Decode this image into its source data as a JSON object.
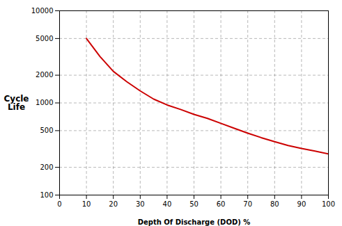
{
  "chart_data": {
    "type": "line",
    "xlabel": "Depth Of Discharge (DOD) %",
    "ylabel": "Cycle\nLife",
    "x": [
      10,
      15,
      20,
      25,
      30,
      35,
      40,
      45,
      50,
      55,
      60,
      65,
      70,
      75,
      80,
      85,
      90,
      95,
      100
    ],
    "values": [
      5000,
      3200,
      2200,
      1700,
      1350,
      1100,
      950,
      850,
      750,
      680,
      600,
      530,
      470,
      420,
      380,
      345,
      320,
      300,
      280
    ],
    "color": "#cc0000",
    "xlim": [
      0,
      100
    ],
    "ylim": [
      100,
      10000
    ],
    "xticks": [
      0,
      10,
      20,
      30,
      40,
      50,
      60,
      70,
      80,
      90,
      100
    ],
    "yticks": [
      100,
      200,
      500,
      1000,
      2000,
      5000,
      10000
    ],
    "log": "y",
    "grid": true
  }
}
